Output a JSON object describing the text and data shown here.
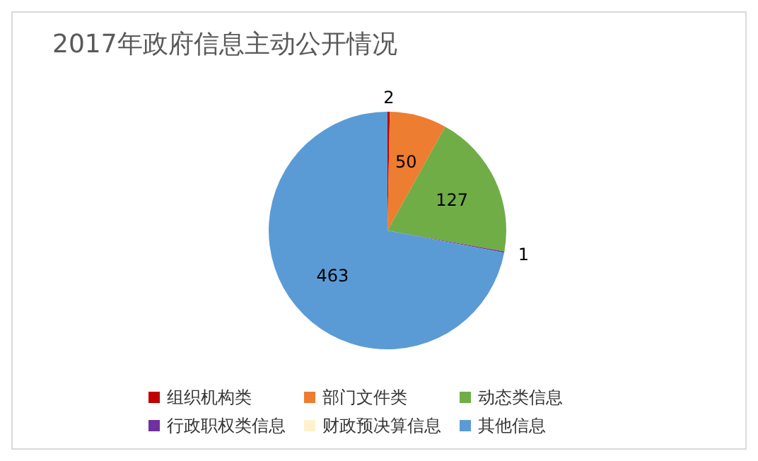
{
  "chart_data": {
    "type": "pie",
    "title": "2017年政府信息主动公开情况",
    "categories": [
      "组织机构类",
      "部门文件类",
      "动态类信息",
      "行政职权类信息",
      "财政预决算信息",
      "其他信息"
    ],
    "values": [
      2,
      50,
      127,
      1,
      0,
      463
    ],
    "colors": [
      "#c00000",
      "#ed7d31",
      "#70ad47",
      "#7030a0",
      "#fff2cc",
      "#5b9bd5"
    ],
    "value_labels": [
      "2",
      "50",
      "127",
      "1",
      null,
      "463"
    ],
    "legend": "bottom"
  }
}
